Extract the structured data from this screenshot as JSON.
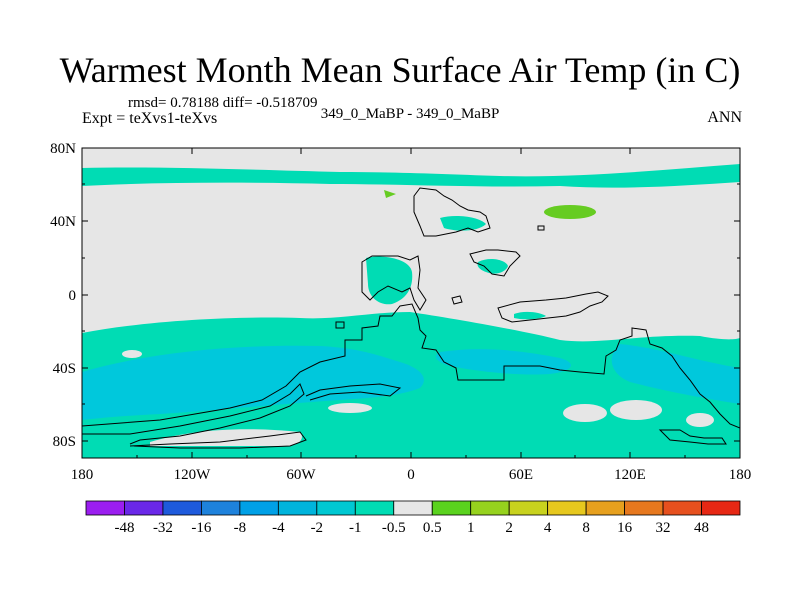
{
  "header": {
    "title": "Warmest Month Mean Surface Air Temp (in C)",
    "stats": "rmsd= 0.78188 diff= -0.518709",
    "expt": "Expt = teXvs1-teXvs",
    "case": "349_0_MaBP - 349_0_MaBP",
    "season": "ANN"
  },
  "map": {
    "lat_ticks": [
      "80N",
      "40N",
      "0",
      "40S",
      "80S"
    ],
    "lon_ticks": [
      "180",
      "120W",
      "60W",
      "0",
      "60E",
      "120E",
      "180"
    ],
    "ocean_color": "#e6e6e6",
    "cool_color": "#00dcb4",
    "colder_color": "#00c8dc",
    "warm_color": "#66cc22"
  },
  "colorbar": {
    "labels": [
      "-48",
      "-32",
      "-16",
      "-8",
      "-4",
      "-2",
      "-1",
      "-0.5",
      "0.5",
      "1",
      "2",
      "4",
      "8",
      "16",
      "32",
      "48"
    ],
    "colors": [
      "#9b1ef0",
      "#6a28e8",
      "#1e5adc",
      "#1e82dc",
      "#00a0e6",
      "#00b4dc",
      "#00c8d2",
      "#00dcb4",
      "#e6e6e6",
      "#5ad21e",
      "#96d21e",
      "#c8d21e",
      "#e6c81e",
      "#e6a01e",
      "#e6781e",
      "#e6501e",
      "#e62814"
    ]
  }
}
